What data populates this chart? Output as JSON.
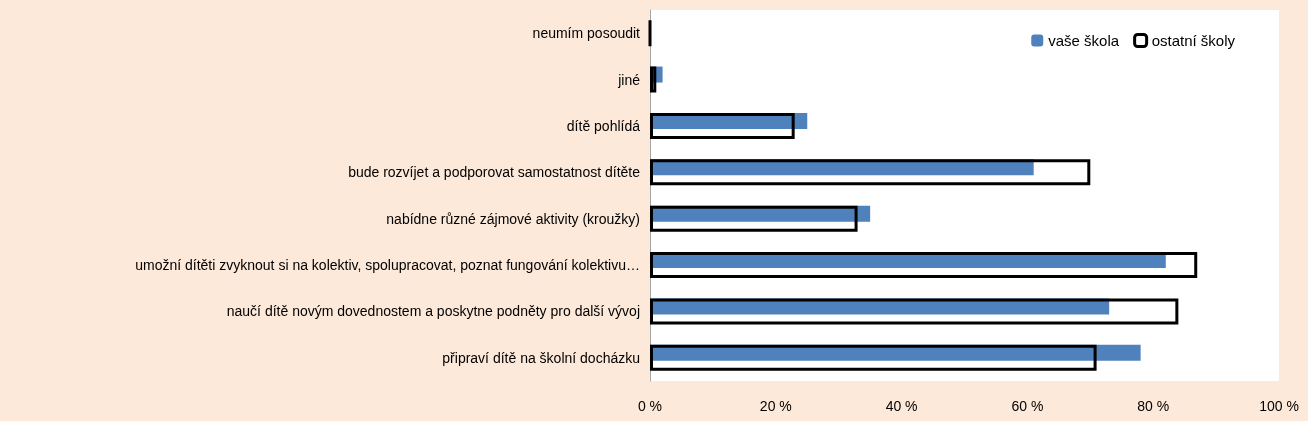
{
  "chart_data": {
    "type": "bar",
    "orientation": "horizontal",
    "categories": [
      "neumím posoudit",
      "jiné",
      "dítě pohlídá",
      "bude rozvíjet a podporovat samostatnost dítěte",
      "nabídne různé zájmové aktivity (kroužky)",
      "umožní dítěti zvyknout si na kolektiv, spolupracovat, poznat fungování kolektivu…",
      "naučí dítě novým dovednostem a poskytne podněty pro další vývoj",
      "připraví dítě na školní docházku"
    ],
    "series": [
      {
        "name": "vaše škola",
        "color": "#4f81bd",
        "values": [
          0,
          2,
          25,
          61,
          35,
          82,
          73,
          78
        ]
      },
      {
        "name": "ostatní školy",
        "color": "#000000",
        "values": [
          0,
          1,
          23,
          70,
          33,
          87,
          84,
          71
        ]
      }
    ],
    "xlim": [
      0,
      100
    ],
    "xticks": [
      {
        "value": 0,
        "label": "0 %"
      },
      {
        "value": 20,
        "label": "20 %"
      },
      {
        "value": 40,
        "label": "40 %"
      },
      {
        "value": 60,
        "label": "60 %"
      },
      {
        "value": 80,
        "label": "80 %"
      },
      {
        "value": 100,
        "label": "100 %"
      }
    ],
    "grid": false,
    "legend": "top right"
  }
}
